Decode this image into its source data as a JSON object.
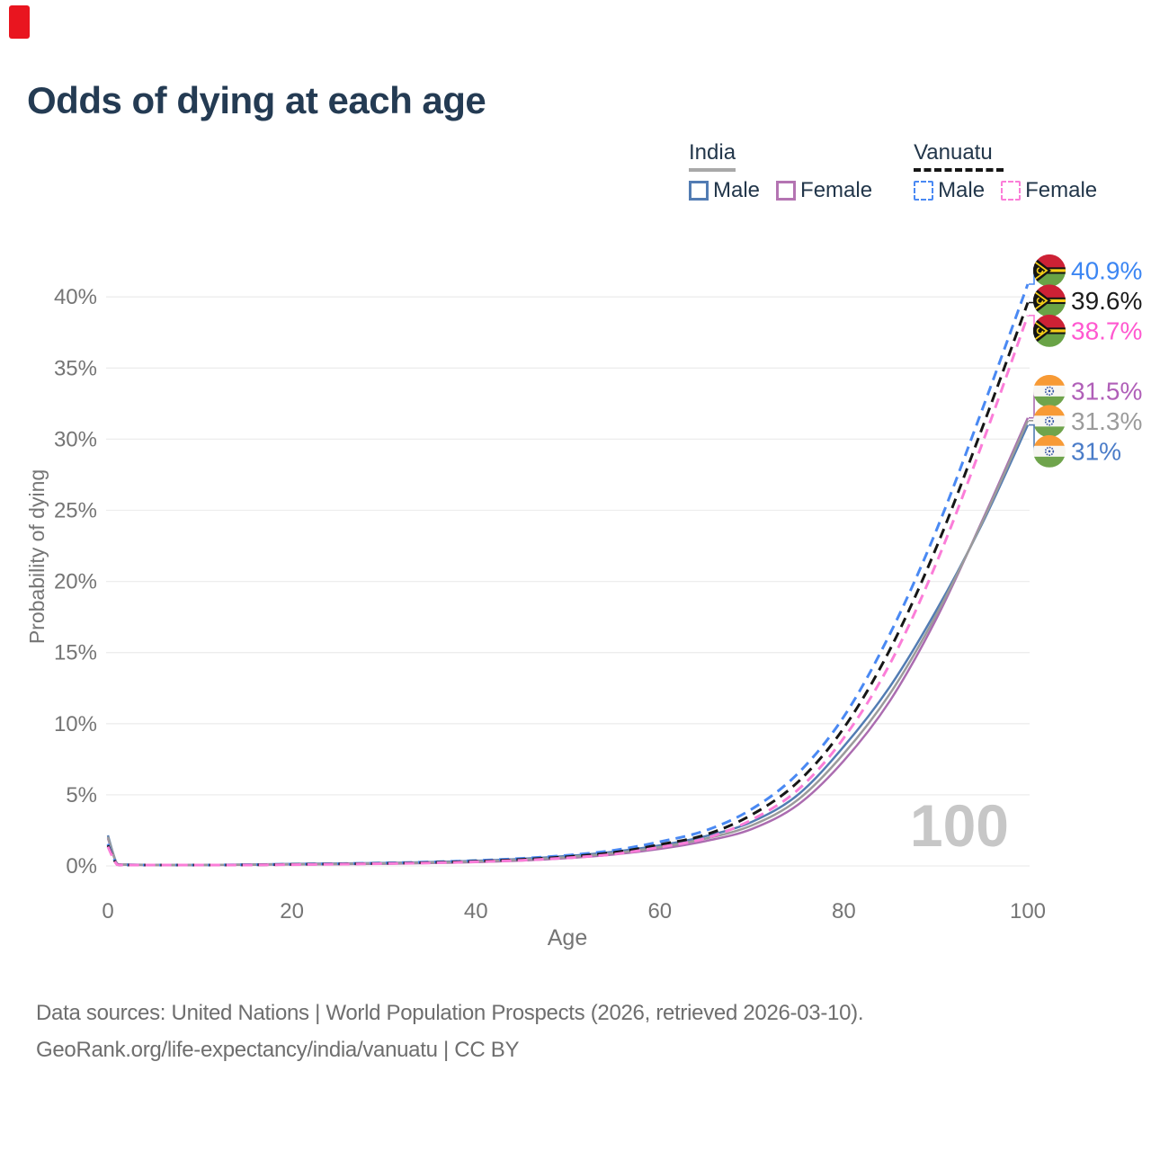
{
  "marker": {
    "color": "#e9151f"
  },
  "header": {
    "title": "Odds of dying at each age"
  },
  "legend": {
    "groups": [
      {
        "label": "India",
        "line": {
          "color": "#a8a8a8",
          "dash": false
        },
        "items": [
          {
            "label": "Male",
            "color": "#527cb3",
            "dash": false
          },
          {
            "label": "Female",
            "color": "#b474b2",
            "dash": false
          }
        ]
      },
      {
        "label": "Vanuatu",
        "line": {
          "color": "#161616",
          "dash": true
        },
        "items": [
          {
            "label": "Male",
            "color": "#4a89f3",
            "dash": true
          },
          {
            "label": "Female",
            "color": "#fb7dd8",
            "dash": true
          }
        ]
      }
    ]
  },
  "chart_data": {
    "type": "line",
    "title": "Odds of dying at each age",
    "xlabel": "Age",
    "ylabel": "Probability of dying",
    "xlim": [
      0,
      100
    ],
    "ylim": [
      0,
      42
    ],
    "xticks": [
      0,
      20,
      40,
      60,
      80,
      100
    ],
    "yticks": [
      0,
      5,
      10,
      15,
      20,
      25,
      30,
      35,
      40
    ],
    "ytick_suffix": "%",
    "grid": "horizontal",
    "grid_color": "#ededed",
    "axis_text_color": "#757575",
    "watermark": "100",
    "watermark_color": "#c7c7c7",
    "ages": [
      0,
      1,
      2,
      5,
      10,
      15,
      20,
      25,
      30,
      35,
      40,
      45,
      50,
      55,
      60,
      65,
      70,
      75,
      80,
      85,
      90,
      95,
      100
    ],
    "series": [
      {
        "name": "India Male",
        "country": "india",
        "sex": "male",
        "color": "#527cb3",
        "label_color": "#4a7cc8",
        "dash": false,
        "end_label": "31%",
        "flag": "india",
        "values": [
          2.15,
          0.15,
          0.1,
          0.07,
          0.07,
          0.1,
          0.14,
          0.17,
          0.21,
          0.27,
          0.36,
          0.5,
          0.7,
          1.0,
          1.45,
          2.1,
          3.1,
          5.0,
          8.4,
          12.6,
          17.9,
          24.0,
          31.0
        ]
      },
      {
        "name": "India Female",
        "country": "india",
        "sex": "female",
        "color": "#ab6cb0",
        "label_color": "#b05fb8",
        "dash": false,
        "end_label": "31.5%",
        "flag": "india",
        "values": [
          1.95,
          0.14,
          0.09,
          0.06,
          0.06,
          0.08,
          0.1,
          0.12,
          0.15,
          0.2,
          0.27,
          0.38,
          0.55,
          0.8,
          1.2,
          1.75,
          2.6,
          4.3,
          7.4,
          11.6,
          17.3,
          24.2,
          31.5
        ]
      },
      {
        "name": "India Average",
        "country": "india",
        "sex": "both",
        "color": "#9b9b9b",
        "label_color": "#9b9b9b",
        "dash": false,
        "end_label": "31.3%",
        "flag": "india",
        "values": [
          2.05,
          0.145,
          0.095,
          0.065,
          0.065,
          0.09,
          0.12,
          0.145,
          0.18,
          0.235,
          0.315,
          0.44,
          0.625,
          0.9,
          1.33,
          1.93,
          2.85,
          4.65,
          7.9,
          12.1,
          17.6,
          24.1,
          31.3
        ]
      },
      {
        "name": "Vanuatu Male",
        "country": "vanuatu",
        "sex": "male",
        "color": "#4a89f3",
        "label_color": "#3c86f3",
        "dash": true,
        "end_label": "40.9%",
        "flag": "vanuatu",
        "values": [
          1.55,
          0.11,
          0.07,
          0.05,
          0.05,
          0.08,
          0.12,
          0.16,
          0.21,
          0.28,
          0.38,
          0.53,
          0.75,
          1.1,
          1.7,
          2.5,
          4.0,
          6.5,
          10.5,
          16.3,
          23.5,
          32.0,
          40.9
        ]
      },
      {
        "name": "Vanuatu Average",
        "country": "vanuatu",
        "sex": "both",
        "color": "#161616",
        "label_color": "#1c1c1c",
        "dash": true,
        "end_label": "39.6%",
        "flag": "vanuatu",
        "values": [
          1.45,
          0.1,
          0.065,
          0.045,
          0.045,
          0.07,
          0.105,
          0.14,
          0.18,
          0.24,
          0.33,
          0.46,
          0.65,
          0.95,
          1.5,
          2.2,
          3.6,
          5.9,
          9.7,
          15.2,
          22.3,
          30.7,
          39.6
        ]
      },
      {
        "name": "Vanuatu Female",
        "country": "vanuatu",
        "sex": "female",
        "color": "#fb7dd8",
        "label_color": "#ff58d0",
        "dash": true,
        "end_label": "38.7%",
        "flag": "vanuatu",
        "values": [
          1.35,
          0.09,
          0.06,
          0.04,
          0.04,
          0.06,
          0.09,
          0.12,
          0.16,
          0.21,
          0.29,
          0.4,
          0.57,
          0.83,
          1.32,
          1.95,
          3.25,
          5.35,
          9.0,
          14.2,
          21.2,
          29.6,
          38.7
        ]
      }
    ],
    "flag_colors": {
      "india": {
        "saffron": "#f79a35",
        "white": "#f7f6f2",
        "green": "#6fa44c",
        "navy": "#3b5aa8"
      },
      "vanuatu": {
        "red": "#cd2135",
        "green": "#69a346",
        "black": "#141414",
        "yellow": "#f6cf17"
      }
    }
  },
  "footer": {
    "line1": "Data sources: United Nations | World Population Prospects (2026, retrieved 2026-03-10).",
    "line2": "GeoRank.org/life-expectancy/india/vanuatu | CC BY"
  }
}
